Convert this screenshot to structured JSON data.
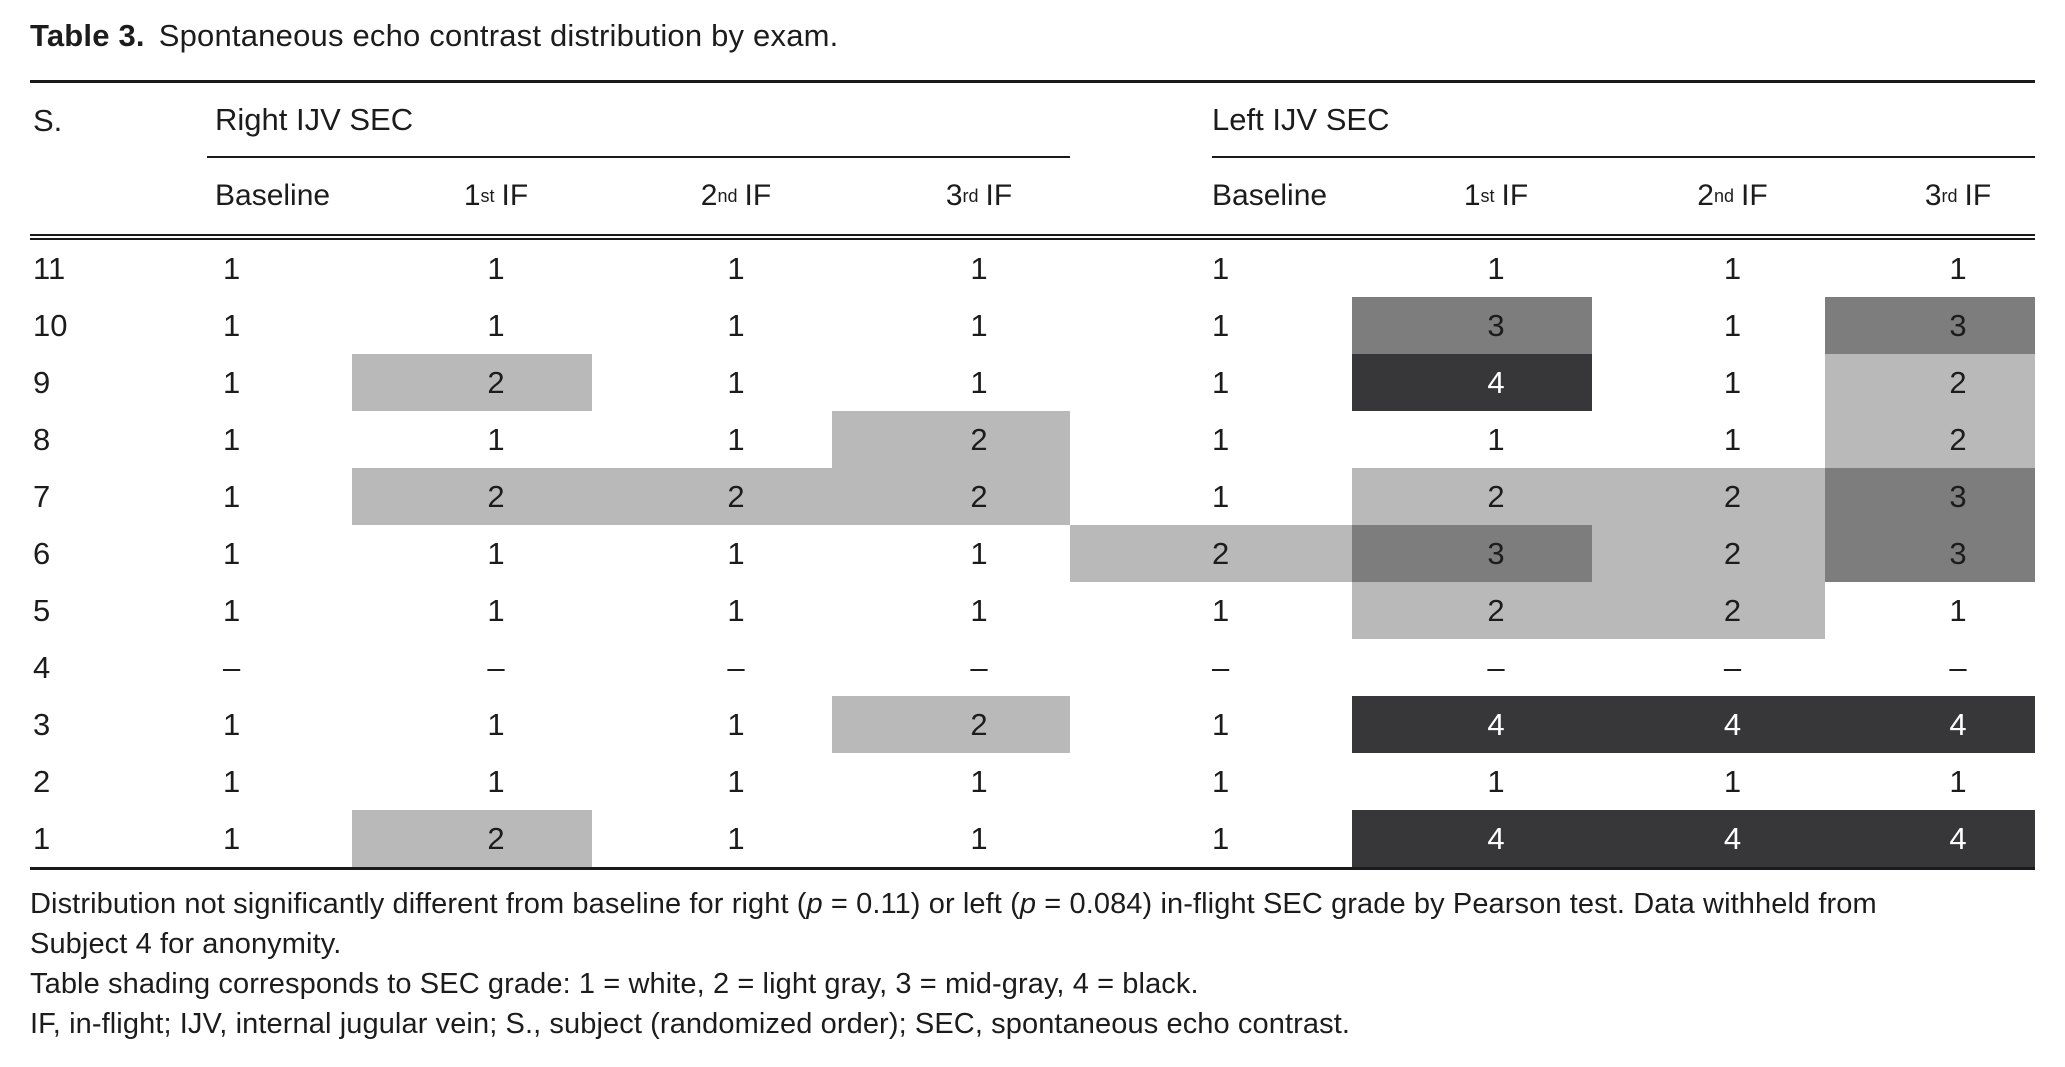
{
  "title": {
    "label": "Table 3.",
    "text": "Spontaneous echo contrast distribution by exam."
  },
  "table": {
    "subject_header": "S.",
    "groups": {
      "right": "Right IJV SEC",
      "left": "Left IJV SEC"
    },
    "sub_columns": [
      {
        "label": "Baseline"
      },
      {
        "num": "1",
        "sup": "st",
        "tail": "IF"
      },
      {
        "num": "2",
        "sup": "nd",
        "tail": "IF"
      },
      {
        "num": "3",
        "sup": "rd",
        "tail": "IF"
      }
    ],
    "shading_colors": {
      "1": "#ffffff",
      "2": "#b9b9b9",
      "3": "#7d7d7d",
      "4": "#37373a"
    },
    "rows": [
      {
        "subject": "11",
        "right": [
          "1",
          "1",
          "1",
          "1"
        ],
        "left": [
          "1",
          "1",
          "1",
          "1"
        ]
      },
      {
        "subject": "10",
        "right": [
          "1",
          "1",
          "1",
          "1"
        ],
        "left": [
          "1",
          "3",
          "1",
          "3"
        ]
      },
      {
        "subject": "9",
        "right": [
          "1",
          "2",
          "1",
          "1"
        ],
        "left": [
          "1",
          "4",
          "1",
          "2"
        ]
      },
      {
        "subject": "8",
        "right": [
          "1",
          "1",
          "1",
          "2"
        ],
        "left": [
          "1",
          "1",
          "1",
          "2"
        ]
      },
      {
        "subject": "7",
        "right": [
          "1",
          "2",
          "2",
          "2"
        ],
        "left": [
          "1",
          "2",
          "2",
          "3"
        ]
      },
      {
        "subject": "6",
        "right": [
          "1",
          "1",
          "1",
          "1"
        ],
        "left": [
          "2",
          "3",
          "2",
          "3"
        ]
      },
      {
        "subject": "5",
        "right": [
          "1",
          "1",
          "1",
          "1"
        ],
        "left": [
          "1",
          "2",
          "2",
          "1"
        ]
      },
      {
        "subject": "4",
        "right": [
          "–",
          "–",
          "–",
          "–"
        ],
        "left": [
          "–",
          "–",
          "–",
          "–"
        ]
      },
      {
        "subject": "3",
        "right": [
          "1",
          "1",
          "1",
          "2"
        ],
        "left": [
          "1",
          "4",
          "4",
          "4"
        ]
      },
      {
        "subject": "2",
        "right": [
          "1",
          "1",
          "1",
          "1"
        ],
        "left": [
          "1",
          "1",
          "1",
          "1"
        ]
      },
      {
        "subject": "1",
        "right": [
          "1",
          "2",
          "1",
          "1"
        ],
        "left": [
          "1",
          "4",
          "4",
          "4"
        ]
      }
    ]
  },
  "footnotes": {
    "line1a_parts": {
      "t1": "Distribution not significantly different from baseline for right (",
      "p1": "p",
      "t2": " = 0.11) or left (",
      "p2": "p",
      "t3": " = 0.084) in-flight SEC grade by Pearson test. Data withheld from"
    },
    "line1b": "Subject 4 for anonymity.",
    "line2": "Table shading corresponds to SEC grade: 1 = white, 2 = light gray, 3 = mid-gray, 4 = black.",
    "line3": "IF, in-flight; IJV, internal jugular vein; S., subject (randomized order); SEC, spontaneous echo contrast."
  }
}
